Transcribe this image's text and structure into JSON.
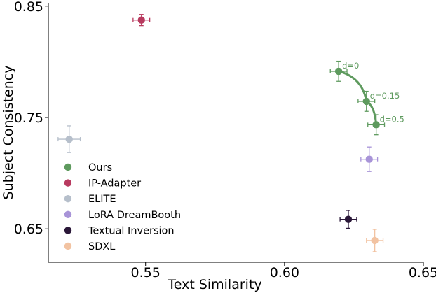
{
  "chart_data": {
    "type": "scatter",
    "xlabel": "Text Similarity",
    "ylabel": "Subject Consistency",
    "xlim": [
      0.515,
      0.65
    ],
    "ylim": [
      0.62,
      0.853
    ],
    "xticks": [
      0.55,
      0.6,
      0.65
    ],
    "xtick_labels": [
      "0.55",
      "0.60",
      "0.65"
    ],
    "yticks": [
      0.65,
      0.75,
      0.85
    ],
    "ytick_labels": [
      "0.65",
      "0.75",
      "0.85"
    ],
    "grid": false,
    "legend_position": "lower-left",
    "series": [
      {
        "name": "Ours",
        "color": "#5e9a5e",
        "connected": true,
        "points": [
          {
            "x": 0.6195,
            "y": 0.7915,
            "xerr": 0.003,
            "yerr": 0.009,
            "label": "d=0"
          },
          {
            "x": 0.6295,
            "y": 0.7645,
            "xerr": 0.003,
            "yerr": 0.009,
            "label": "d=0.15"
          },
          {
            "x": 0.633,
            "y": 0.7435,
            "xerr": 0.003,
            "yerr": 0.009,
            "label": "d=0.5"
          }
        ]
      },
      {
        "name": "IP-Adapter",
        "color": "#b83a5f",
        "points": [
          {
            "x": 0.5485,
            "y": 0.8375,
            "xerr": 0.003,
            "yerr": 0.005
          }
        ]
      },
      {
        "name": "ELITE",
        "color": "#b6bfcb",
        "points": [
          {
            "x": 0.5225,
            "y": 0.7305,
            "xerr": 0.004,
            "yerr": 0.012
          }
        ]
      },
      {
        "name": "LoRA DreamBooth",
        "color": "#a894d8",
        "points": [
          {
            "x": 0.6305,
            "y": 0.7125,
            "xerr": 0.003,
            "yerr": 0.011
          }
        ]
      },
      {
        "name": "Textual Inversion",
        "color": "#2a1738",
        "points": [
          {
            "x": 0.623,
            "y": 0.6585,
            "xerr": 0.003,
            "yerr": 0.008
          }
        ]
      },
      {
        "name": "SDXL",
        "color": "#f2c3a2",
        "points": [
          {
            "x": 0.6325,
            "y": 0.6395,
            "xerr": 0.003,
            "yerr": 0.01
          }
        ]
      }
    ]
  }
}
